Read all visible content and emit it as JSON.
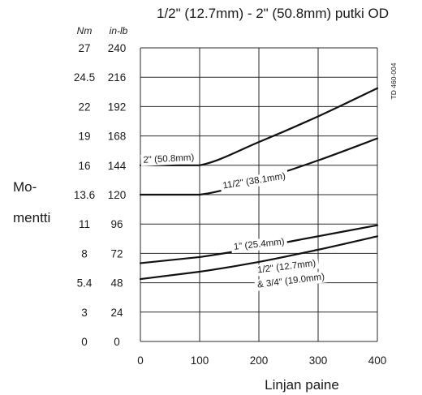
{
  "chart_data": {
    "type": "line",
    "title": "1/2\" (12.7mm) - 2\" (50.8mm) putki OD",
    "xlabel": "Linjan paine",
    "ylabel_lines": [
      "Mo-",
      "mentti"
    ],
    "y_unit_left": "Nm",
    "y_unit_right": "in-lb",
    "doc_code": "TD 460-004",
    "xlim": [
      0,
      400
    ],
    "ylim": [
      0,
      240
    ],
    "x_ticks": [
      0,
      100,
      200,
      300,
      400
    ],
    "y_ticks_inlb": [
      0,
      24,
      48,
      72,
      96,
      120,
      144,
      168,
      192,
      216,
      240
    ],
    "y_ticks_nm": [
      "0",
      "3",
      "5.4",
      "8",
      "11",
      "13.6",
      "16",
      "19",
      "22",
      "24.5",
      "27"
    ],
    "grid": true,
    "series": [
      {
        "name": "2\" (50.8mm)",
        "x": [
          0,
          100,
          200,
          300,
          400
        ],
        "y": [
          144,
          144,
          163,
          184,
          207
        ]
      },
      {
        "name": "11/2\" (38.1mm)",
        "x": [
          0,
          100,
          200,
          300,
          400
        ],
        "y": [
          120,
          120,
          132,
          148,
          166
        ]
      },
      {
        "name": "1\" (25.4mm)",
        "x": [
          0,
          100,
          200,
          300,
          400
        ],
        "y": [
          64,
          69,
          77,
          86,
          95
        ]
      },
      {
        "name": "1/2\" (12.7mm) & 3/4\" (19.0mm)",
        "x": [
          0,
          100,
          200,
          300,
          400
        ],
        "y": [
          51,
          57,
          65,
          75,
          86
        ]
      }
    ],
    "curve_labels": [
      {
        "text": "2\" (50.8mm)",
        "x": 5,
        "y": 146,
        "rotate": -3
      },
      {
        "text": "11/2\" (38.1mm)",
        "x": 140,
        "y": 125,
        "rotate": -9
      },
      {
        "text": "1\" (25.4mm)",
        "x": 158,
        "y": 75,
        "rotate": -6
      },
      {
        "text": "1/2\" (12.7mm)",
        "x": 198,
        "y": 56,
        "rotate": -7
      },
      {
        "text": "& 3/4\" (19.0mm)",
        "x": 198,
        "y": 44,
        "rotate": -7
      }
    ]
  }
}
